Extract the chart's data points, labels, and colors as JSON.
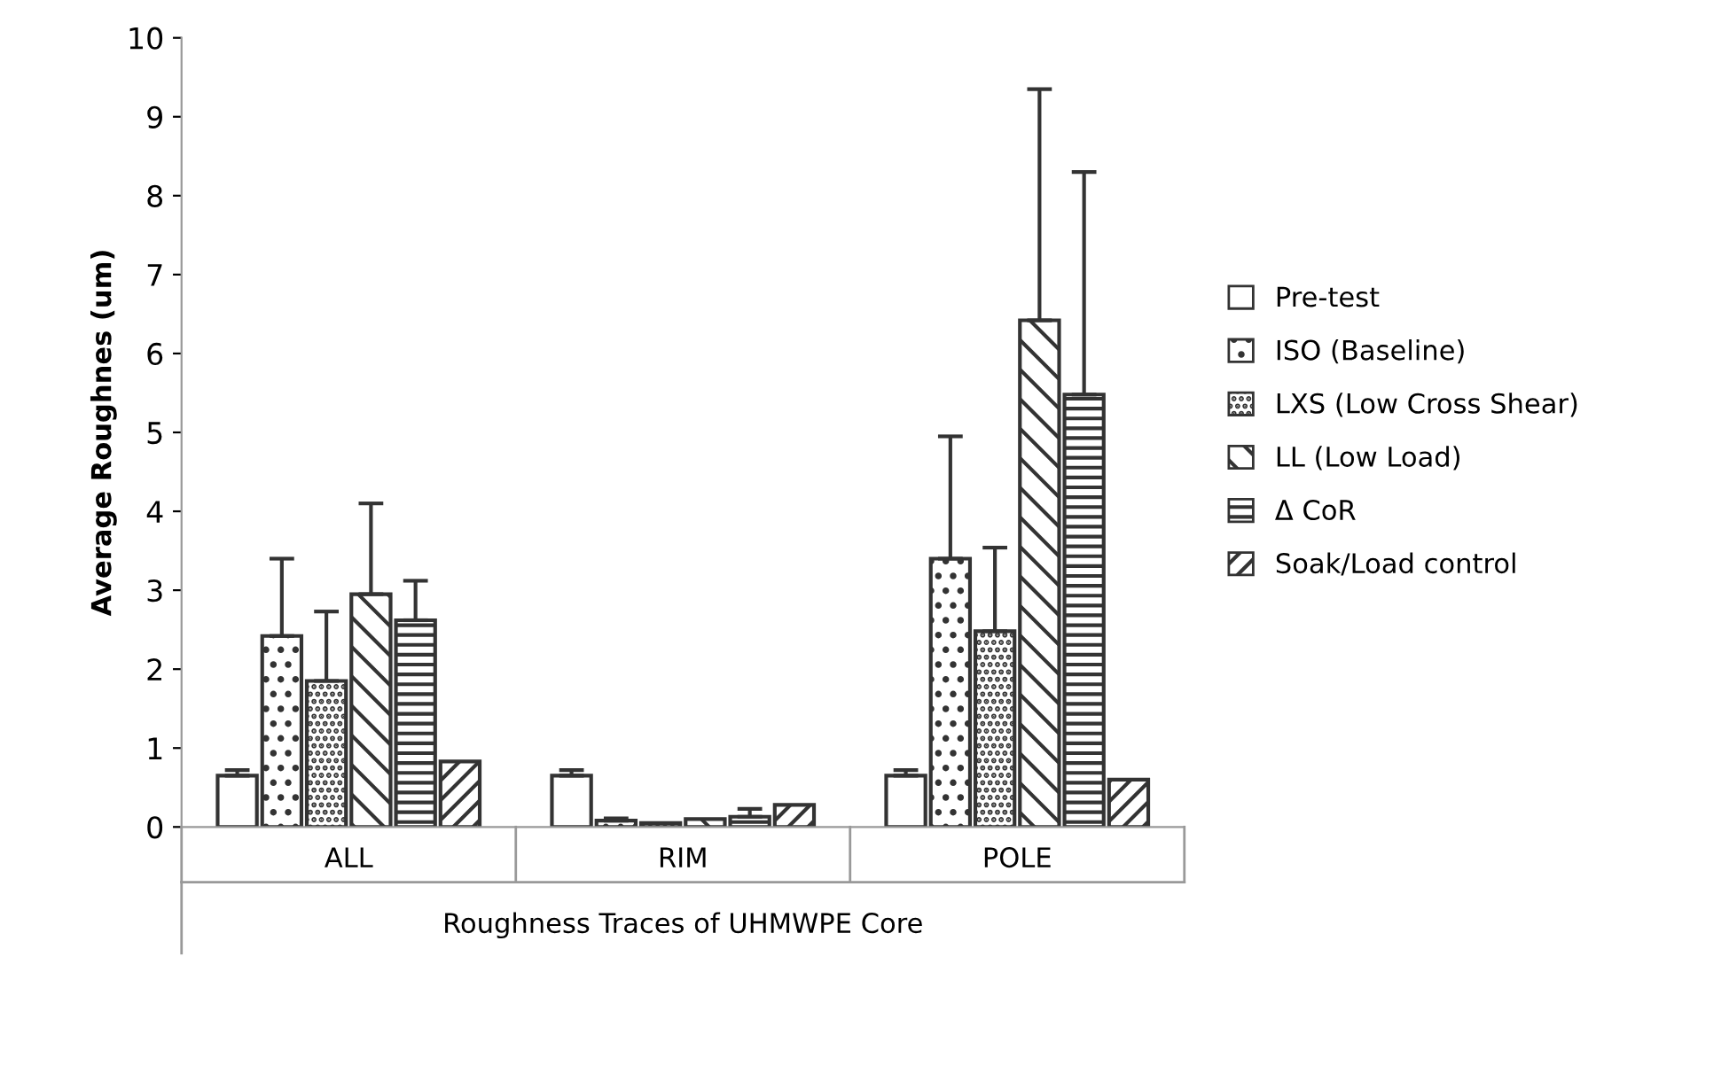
{
  "chart_data": {
    "type": "bar",
    "xlabel": "Roughness Traces of UHMWPE Core",
    "ylabel": "Average Roughnes (um)",
    "categories": [
      "ALL",
      "RIM",
      "POLE"
    ],
    "series": [
      {
        "name": "Pre-test",
        "color": "#ffffff",
        "values": [
          0.65,
          0.65,
          0.65
        ],
        "errors": [
          [
            0.65,
            0.72
          ],
          [
            0.65,
            0.72
          ],
          [
            0.65,
            0.72
          ]
        ]
      },
      {
        "name": "ISO (Baseline)",
        "color": "#333333",
        "values": [
          2.42,
          0.08,
          3.4
        ],
        "errors": [
          [
            2.42,
            3.4
          ],
          [
            0.08,
            0.11
          ],
          [
            3.4,
            4.95
          ]
        ]
      },
      {
        "name": "LXS (Low Cross Shear)",
        "color": "#333333",
        "values": [
          1.85,
          0.05,
          2.48
        ],
        "errors": [
          [
            1.85,
            2.73
          ],
          null,
          [
            2.48,
            3.54
          ]
        ]
      },
      {
        "name": "LL (Low Load)",
        "color": "#333333",
        "values": [
          2.95,
          0.1,
          6.42
        ],
        "errors": [
          [
            2.95,
            4.1
          ],
          null,
          [
            6.42,
            9.35
          ]
        ]
      },
      {
        "name": "Δ CoR",
        "color": "#333333",
        "values": [
          2.62,
          0.13,
          5.48
        ],
        "errors": [
          [
            2.62,
            3.12
          ],
          [
            0.13,
            0.23
          ],
          [
            5.48,
            8.3
          ]
        ]
      },
      {
        "name": "Soak/Load control",
        "color": "#333333",
        "values": [
          0.83,
          0.28,
          0.6
        ]
      }
    ],
    "ylim": [
      0,
      10
    ],
    "yticks": [
      0,
      1,
      2,
      3,
      4,
      5,
      6,
      7,
      8,
      9,
      10
    ],
    "grid": false,
    "legend": "right"
  }
}
